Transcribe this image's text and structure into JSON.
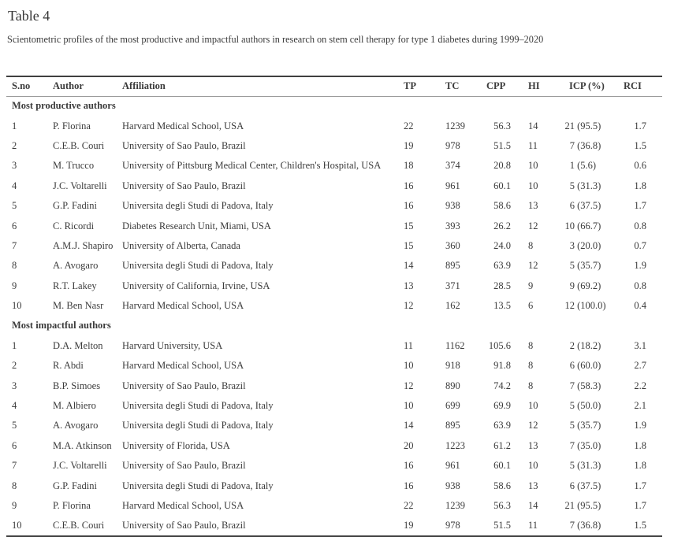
{
  "page": {
    "title": "Table 4",
    "caption": "Scientometric profiles of the most productive and impactful authors in research on stem cell therapy for type 1 diabetes during 1999–2020"
  },
  "colors": {
    "background": "#ffffff",
    "text": "#3b3b3b",
    "rule_dark": "#3f3f3f",
    "rule_light": "#9b9b9b"
  },
  "table": {
    "columns": [
      "S.no",
      "Author",
      "Affiliation",
      "TP",
      "TC",
      "CPP",
      "HI",
      "ICP (%)",
      "RCI"
    ],
    "column_keys": [
      "sno",
      "author",
      "affiliation",
      "tp",
      "tc",
      "cpp",
      "hi",
      "icp",
      "rci"
    ],
    "sections": [
      {
        "label": "Most productive authors",
        "rows": [
          [
            "1",
            "P. Florina",
            "Harvard Medical School, USA",
            "22",
            "1239",
            "56.3",
            "14",
            "21 (95.5)",
            "1.7"
          ],
          [
            "2",
            "C.E.B. Couri",
            "University of Sao Paulo, Brazil",
            "19",
            "978",
            "51.5",
            "11",
            "7 (36.8)",
            "1.5"
          ],
          [
            "3",
            "M. Trucco",
            "University of Pittsburg Medical Center, Children's Hospital, USA",
            "18",
            "374",
            "20.8",
            "10",
            "1 (5.6)",
            "0.6"
          ],
          [
            "4",
            "J.C. Voltarelli",
            "University of Sao Paulo, Brazil",
            "16",
            "961",
            "60.1",
            "10",
            "5 (31.3)",
            "1.8"
          ],
          [
            "5",
            "G.P. Fadini",
            "Universita degli Studi di Padova, Italy",
            "16",
            "938",
            "58.6",
            "13",
            "6 (37.5)",
            "1.7"
          ],
          [
            "6",
            "C. Ricordi",
            "Diabetes Research Unit, Miami, USA",
            "15",
            "393",
            "26.2",
            "12",
            "10 (66.7)",
            "0.8"
          ],
          [
            "7",
            "A.M.J. Shapiro",
            "University of Alberta, Canada",
            "15",
            "360",
            "24.0",
            "8",
            "3 (20.0)",
            "0.7"
          ],
          [
            "8",
            "A. Avogaro",
            "Universita degli Studi di Padova, Italy",
            "14",
            "895",
            "63.9",
            "12",
            "5 (35.7)",
            "1.9"
          ],
          [
            "9",
            "R.T. Lakey",
            "University of California, Irvine, USA",
            "13",
            "371",
            "28.5",
            "9",
            "9 (69.2)",
            "0.8"
          ],
          [
            "10",
            "M. Ben Nasr",
            "Harvard Medical School, USA",
            "12",
            "162",
            "13.5",
            "6",
            "12 (100.0)",
            "0.4"
          ]
        ]
      },
      {
        "label": "Most impactful authors",
        "rows": [
          [
            "1",
            "D.A. Melton",
            "Harvard University, USA",
            "11",
            "1162",
            "105.6",
            "8",
            "2 (18.2)",
            "3.1"
          ],
          [
            "2",
            "R. Abdi",
            "Harvard Medical School, USA",
            "10",
            "918",
            "91.8",
            "8",
            "6 (60.0)",
            "2.7"
          ],
          [
            "3",
            "B.P. Simoes",
            "University of Sao Paulo, Brazil",
            "12",
            "890",
            "74.2",
            "8",
            "7 (58.3)",
            "2.2"
          ],
          [
            "4",
            "M. Albiero",
            "Universita degli Studi di Padova, Italy",
            "10",
            "699",
            "69.9",
            "10",
            "5 (50.0)",
            "2.1"
          ],
          [
            "5",
            "A. Avogaro",
            "Universita degli Studi di Padova, Italy",
            "14",
            "895",
            "63.9",
            "12",
            "5 (35.7)",
            "1.9"
          ],
          [
            "6",
            "M.A. Atkinson",
            "University of Florida, USA",
            "20",
            "1223",
            "61.2",
            "13",
            "7 (35.0)",
            "1.8"
          ],
          [
            "7",
            "J.C. Voltarelli",
            "University of Sao Paulo, Brazil",
            "16",
            "961",
            "60.1",
            "10",
            "5 (31.3)",
            "1.8"
          ],
          [
            "8",
            "G.P. Fadini",
            "Universita degli Studi di Padova, Italy",
            "16",
            "938",
            "58.6",
            "13",
            "6 (37.5)",
            "1.7"
          ],
          [
            "9",
            "P. Florina",
            "Harvard Medical School, USA",
            "22",
            "1239",
            "56.3",
            "14",
            "21 (95.5)",
            "1.7"
          ],
          [
            "10",
            "C.E.B. Couri",
            "University of Sao Paulo, Brazil",
            "19",
            "978",
            "51.5",
            "11",
            "7 (36.8)",
            "1.5"
          ]
        ]
      }
    ]
  }
}
